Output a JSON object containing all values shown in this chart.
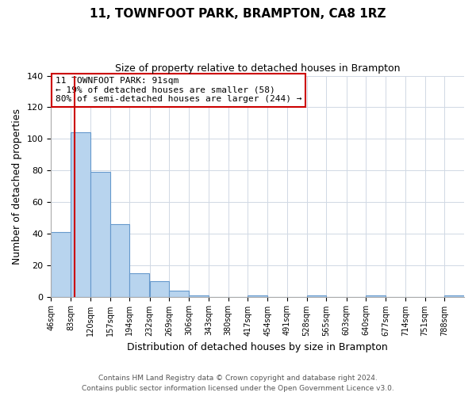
{
  "title": "11, TOWNFOOT PARK, BRAMPTON, CA8 1RZ",
  "subtitle": "Size of property relative to detached houses in Brampton",
  "xlabel": "Distribution of detached houses by size in Brampton",
  "ylabel": "Number of detached properties",
  "bar_values": [
    41,
    104,
    79,
    46,
    15,
    10,
    4,
    1,
    0,
    0,
    1,
    0,
    0,
    1,
    0,
    0,
    1,
    0,
    0,
    0,
    1
  ],
  "bin_labels": [
    "46sqm",
    "83sqm",
    "120sqm",
    "157sqm",
    "194sqm",
    "232sqm",
    "269sqm",
    "306sqm",
    "343sqm",
    "380sqm",
    "417sqm",
    "454sqm",
    "491sqm",
    "528sqm",
    "565sqm",
    "603sqm",
    "640sqm",
    "677sqm",
    "714sqm",
    "751sqm",
    "788sqm"
  ],
  "bar_color": "#b8d4ee",
  "bar_edge_color": "#6699cc",
  "property_line_x": 91,
  "bin_edges": [
    46,
    83,
    120,
    157,
    194,
    232,
    269,
    306,
    343,
    380,
    417,
    454,
    491,
    528,
    565,
    603,
    640,
    677,
    714,
    751,
    788,
    825
  ],
  "ylim": [
    0,
    140
  ],
  "yticks": [
    0,
    20,
    40,
    60,
    80,
    100,
    120,
    140
  ],
  "annotation_box_text": "11 TOWNFOOT PARK: 91sqm\n← 19% of detached houses are smaller (58)\n80% of semi-detached houses are larger (244) →",
  "annotation_box_color": "#ffffff",
  "annotation_box_edge_color": "#cc0000",
  "red_line_color": "#cc0000",
  "footer_line1": "Contains HM Land Registry data © Crown copyright and database right 2024.",
  "footer_line2": "Contains public sector information licensed under the Open Government Licence v3.0.",
  "background_color": "#ffffff",
  "grid_color": "#d0d8e4"
}
